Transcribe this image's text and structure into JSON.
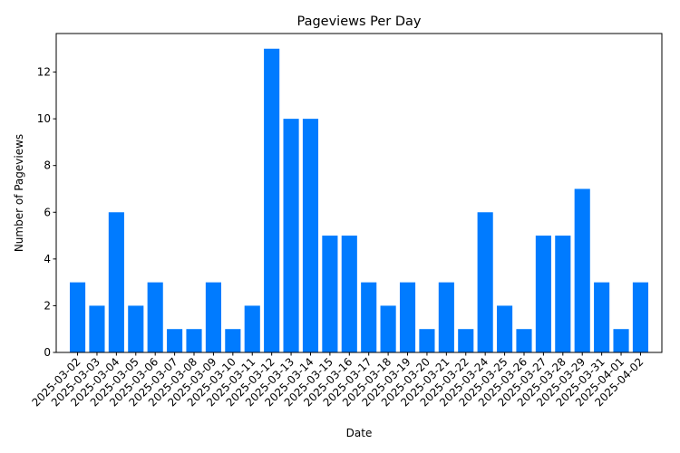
{
  "chart_data": {
    "type": "bar",
    "title": "Pageviews Per Day",
    "xlabel": "Date",
    "ylabel": "Number of Pageviews",
    "categories": [
      "2025-03-02",
      "2025-03-03",
      "2025-03-04",
      "2025-03-05",
      "2025-03-06",
      "2025-03-07",
      "2025-03-08",
      "2025-03-09",
      "2025-03-10",
      "2025-03-11",
      "2025-03-12",
      "2025-03-13",
      "2025-03-14",
      "2025-03-15",
      "2025-03-16",
      "2025-03-17",
      "2025-03-18",
      "2025-03-19",
      "2025-03-20",
      "2025-03-21",
      "2025-03-22",
      "2025-03-24",
      "2025-03-25",
      "2025-03-26",
      "2025-03-27",
      "2025-03-28",
      "2025-03-29",
      "2025-03-31",
      "2025-04-01",
      "2025-04-02"
    ],
    "values": [
      3,
      2,
      6,
      2,
      3,
      1,
      1,
      3,
      1,
      2,
      13,
      10,
      10,
      5,
      5,
      3,
      2,
      3,
      1,
      3,
      1,
      6,
      2,
      1,
      5,
      5,
      7,
      3,
      1,
      3
    ],
    "ylim": [
      0,
      13.65
    ],
    "yticks": [
      0,
      2,
      4,
      6,
      8,
      10,
      12
    ],
    "bar_color": "#007bff",
    "grid": false
  }
}
